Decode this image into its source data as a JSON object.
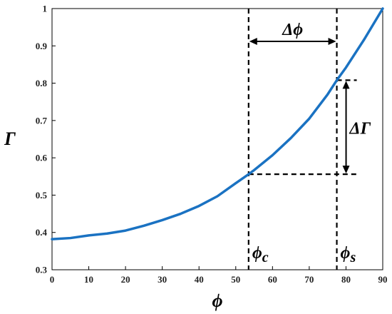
{
  "chart_data": {
    "type": "line",
    "xlabel": "ϕ",
    "ylabel": "Γ",
    "xlim": [
      0,
      90
    ],
    "ylim": [
      0.3,
      1
    ],
    "x_ticks": [
      0,
      10,
      20,
      30,
      40,
      50,
      60,
      70,
      80,
      90
    ],
    "y_ticks": [
      0.3,
      0.4,
      0.5,
      0.6,
      0.7,
      0.8,
      0.9,
      1
    ],
    "y_tick_labels": [
      "0.3",
      "0.4",
      "0.5",
      "0.6",
      "0.7",
      "0.8",
      "0.9",
      "1"
    ],
    "grid": false,
    "series": [
      {
        "color": "#1a72c2",
        "x": [
          0,
          5,
          10,
          15,
          20,
          25,
          30,
          35,
          40,
          45,
          50,
          53.5,
          55,
          60,
          65,
          70,
          75,
          77.5,
          80,
          85,
          90
        ],
        "y": [
          0.382,
          0.385,
          0.392,
          0.397,
          0.405,
          0.418,
          0.433,
          0.45,
          0.471,
          0.497,
          0.532,
          0.556,
          0.567,
          0.607,
          0.653,
          0.705,
          0.77,
          0.808,
          0.842,
          0.918,
          1.0
        ]
      }
    ],
    "annotations": {
      "phi_c": {
        "x": 53.5,
        "label": "ϕc"
      },
      "phi_s": {
        "x": 77.5,
        "label": "ϕs"
      },
      "gamma_c": 0.556,
      "gamma_s": 0.808,
      "delta_phi_label": "Δϕ",
      "delta_gamma_label": "ΔΓ"
    }
  }
}
